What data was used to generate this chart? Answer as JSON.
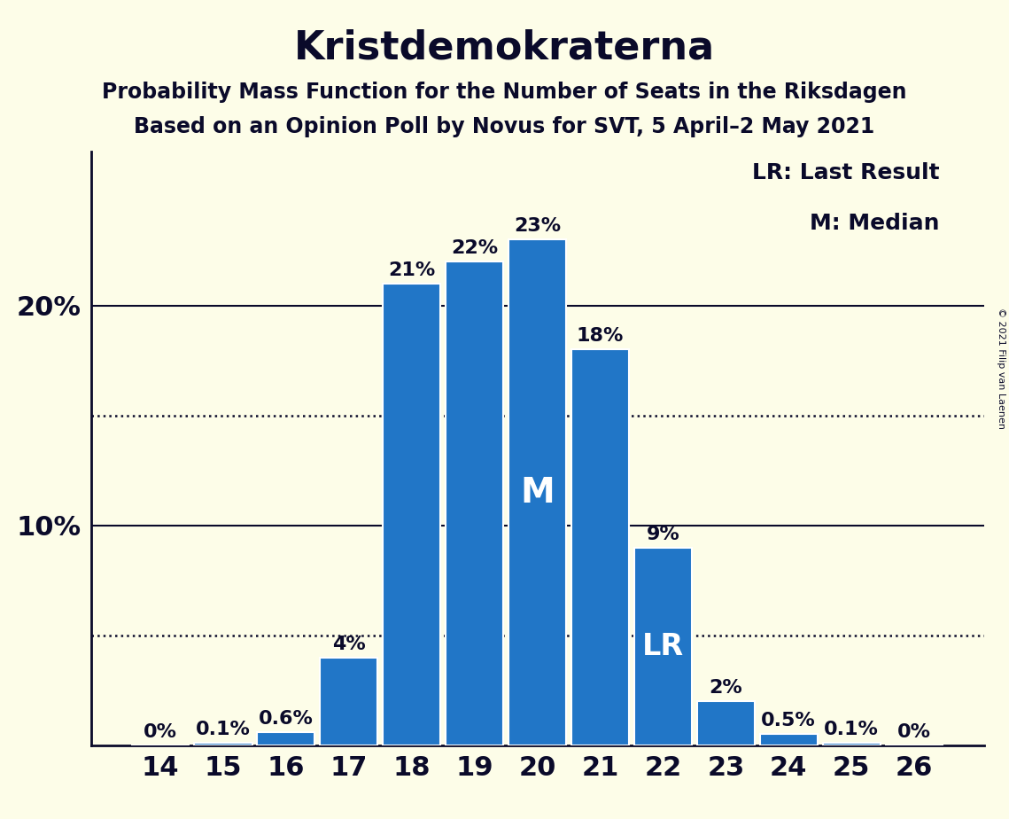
{
  "title": "Kristdemokraterna",
  "subtitle1": "Probability Mass Function for the Number of Seats in the Riksdagen",
  "subtitle2": "Based on an Opinion Poll by Novus for SVT, 5 April–2 May 2021",
  "copyright": "© 2021 Filip van Laenen",
  "categories": [
    14,
    15,
    16,
    17,
    18,
    19,
    20,
    21,
    22,
    23,
    24,
    25,
    26
  ],
  "values": [
    0.0,
    0.1,
    0.6,
    4.0,
    21.0,
    22.0,
    23.0,
    18.0,
    9.0,
    2.0,
    0.5,
    0.1,
    0.0
  ],
  "bar_labels": [
    "0%",
    "0.1%",
    "0.6%",
    "4%",
    "21%",
    "22%",
    "23%",
    "18%",
    "9%",
    "2%",
    "0.5%",
    "0.1%",
    "0%"
  ],
  "bar_color": "#2176c7",
  "background_color": "#fdfde8",
  "text_color": "#0a0a2a",
  "median_seat": 20,
  "lr_seat": 22,
  "dotted_lines": [
    5,
    15
  ],
  "solid_lines": [
    10,
    20
  ],
  "ylim": [
    0,
    27
  ],
  "legend_text": [
    "LR: Last Result",
    "M: Median"
  ],
  "title_fontsize": 32,
  "subtitle_fontsize": 17,
  "label_fontsize": 16,
  "axis_fontsize": 22,
  "legend_fontsize": 18,
  "inside_label_fontsize": 28
}
